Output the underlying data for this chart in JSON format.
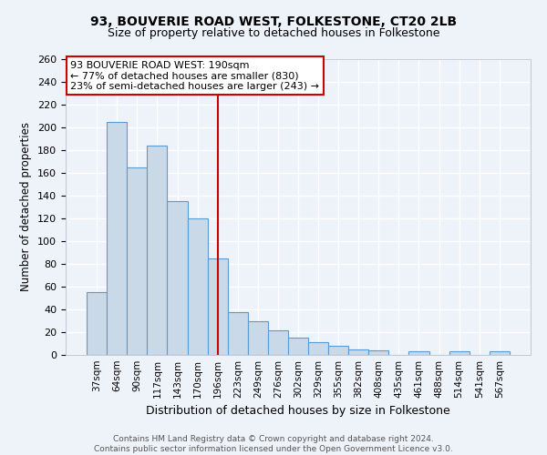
{
  "title1": "93, BOUVERIE ROAD WEST, FOLKESTONE, CT20 2LB",
  "title2": "Size of property relative to detached houses in Folkestone",
  "xlabel": "Distribution of detached houses by size in Folkestone",
  "ylabel": "Number of detached properties",
  "footer1": "Contains HM Land Registry data © Crown copyright and database right 2024.",
  "footer2": "Contains public sector information licensed under the Open Government Licence v3.0.",
  "annotation_line1": "93 BOUVERIE ROAD WEST: 190sqm",
  "annotation_line2": "← 77% of detached houses are smaller (830)",
  "annotation_line3": "23% of semi-detached houses are larger (243) →",
  "categories": [
    "37sqm",
    "64sqm",
    "90sqm",
    "117sqm",
    "143sqm",
    "170sqm",
    "196sqm",
    "223sqm",
    "249sqm",
    "276sqm",
    "302sqm",
    "329sqm",
    "355sqm",
    "382sqm",
    "408sqm",
    "435sqm",
    "461sqm",
    "488sqm",
    "514sqm",
    "541sqm",
    "567sqm"
  ],
  "values": [
    55,
    205,
    165,
    184,
    135,
    120,
    85,
    38,
    30,
    22,
    15,
    11,
    8,
    5,
    4,
    0,
    3,
    0,
    3,
    0,
    3
  ],
  "bar_color": "#c9d9e8",
  "bar_edge_color": "#5b9bd5",
  "vline_color": "#cc0000",
  "annotation_box_color": "#ffffff",
  "annotation_box_edge": "#cc0000",
  "bg_color": "#eef2f9",
  "grid_color": "#ffffff",
  "ylim": [
    0,
    260
  ],
  "yticks": [
    0,
    20,
    40,
    60,
    80,
    100,
    120,
    140,
    160,
    180,
    200,
    220,
    240,
    260
  ],
  "vline_index": 6
}
